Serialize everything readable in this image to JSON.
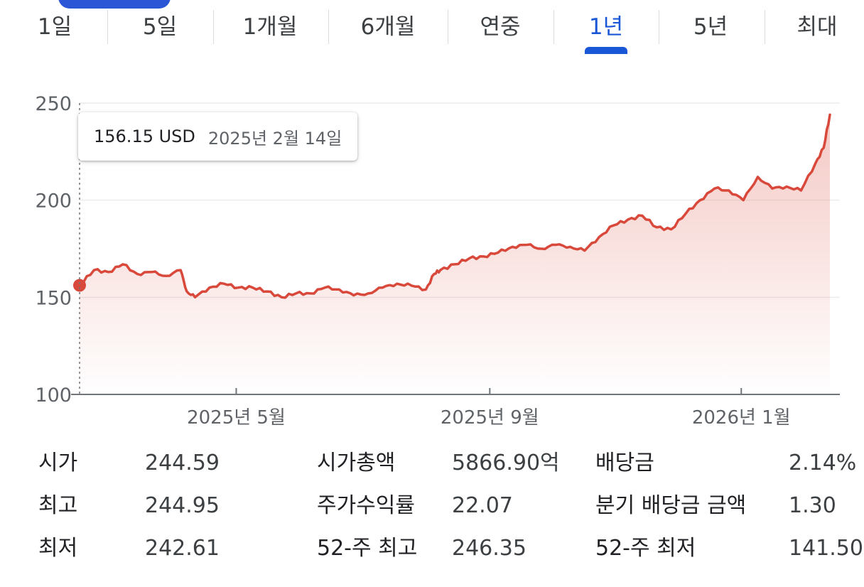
{
  "range_tabs": {
    "items": [
      "1일",
      "5일",
      "1개월",
      "6개월",
      "연중",
      "1년",
      "5년",
      "최대"
    ],
    "active_index": 5,
    "active_color": "#1a57d6"
  },
  "tooltip": {
    "price": "156.15 USD",
    "date": "2025년 2월 14일"
  },
  "chart_data": {
    "type": "area",
    "line_color": "#d9493b",
    "ylim": [
      100,
      250
    ],
    "y_ticks": [
      100,
      150,
      200,
      250
    ],
    "y_tick_labels": [
      "100",
      "150",
      "200",
      "250"
    ],
    "x_ticks": [
      "2025-05-01",
      "2025-09-01",
      "2026-01-01"
    ],
    "x_tick_labels": [
      "2025년 5월",
      "2025년 9월",
      "2026년 1월"
    ],
    "grid": true,
    "highlighted_point": {
      "x": "2025-02-14",
      "y": 156.15
    },
    "series": [
      {
        "x": [
          "2025-02-14",
          "2025-02-21",
          "2025-02-28",
          "2025-03-07",
          "2025-03-14",
          "2025-03-21",
          "2025-03-28",
          "2025-04-04",
          "2025-04-07",
          "2025-04-11",
          "2025-04-18",
          "2025-04-25",
          "2025-05-02",
          "2025-05-09",
          "2025-05-16",
          "2025-05-23",
          "2025-05-30",
          "2025-06-06",
          "2025-06-13",
          "2025-06-20",
          "2025-06-27",
          "2025-07-04",
          "2025-07-11",
          "2025-07-18",
          "2025-07-25",
          "2025-08-01",
          "2025-08-05",
          "2025-08-08",
          "2025-08-15",
          "2025-08-22",
          "2025-08-29",
          "2025-09-05",
          "2025-09-12",
          "2025-09-19",
          "2025-09-26",
          "2025-10-03",
          "2025-10-10",
          "2025-10-17",
          "2025-10-24",
          "2025-10-31",
          "2025-11-07",
          "2025-11-14",
          "2025-11-21",
          "2025-11-28",
          "2025-12-05",
          "2025-12-12",
          "2025-12-19",
          "2025-12-26",
          "2026-01-02",
          "2026-01-09",
          "2026-01-16",
          "2026-01-23",
          "2026-01-30",
          "2026-02-06",
          "2026-02-10",
          "2026-02-13"
        ],
        "y": [
          156.15,
          164,
          163,
          167,
          162,
          163,
          161,
          164,
          153,
          150,
          155,
          157,
          155,
          155,
          153,
          150,
          152,
          152,
          155,
          154,
          151,
          152,
          155,
          157,
          156,
          154,
          162,
          164,
          167,
          170,
          171,
          173,
          176,
          177,
          175,
          177,
          176,
          174,
          181,
          187,
          190,
          192,
          186,
          185,
          193,
          200,
          206,
          205,
          200,
          212,
          206,
          207,
          205,
          219,
          227,
          244
        ]
      }
    ]
  },
  "stats": {
    "columns": [
      {
        "rows": [
          {
            "label": "시가",
            "value": "244.59"
          },
          {
            "label": "최고",
            "value": "244.95"
          },
          {
            "label": "최저",
            "value": "242.61"
          }
        ]
      },
      {
        "rows": [
          {
            "label": "시가총액",
            "value": "5866.90억"
          },
          {
            "label": "주가수익률",
            "value": "22.07"
          },
          {
            "label": "52-주 최고",
            "value": "246.35"
          }
        ]
      },
      {
        "rows": [
          {
            "label": "배당금",
            "value": "2.14%"
          },
          {
            "label": "분기 배당금 금액",
            "value": "1.30"
          },
          {
            "label": "52-주 최저",
            "value": "141.50"
          }
        ]
      }
    ]
  }
}
